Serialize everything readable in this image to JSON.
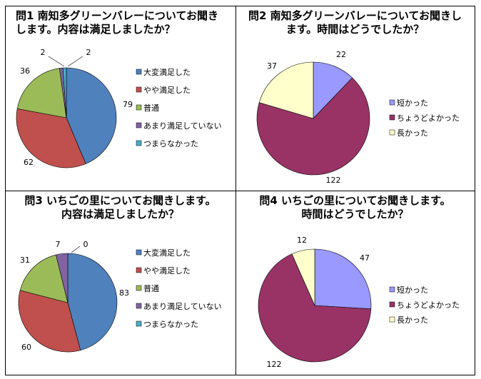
{
  "chart_data": [
    {
      "type": "pie",
      "title": "問1  南知多グリーンバレーについてお聞き\nします。内容は満足しましたか？",
      "categories": [
        "大変満足した",
        "やや満足した",
        "普通",
        "あまり満足していない",
        "つまらなかった"
      ],
      "values": [
        79,
        62,
        36,
        2,
        2
      ],
      "colors": [
        "#4f81bd",
        "#c0504d",
        "#9bbb59",
        "#8064a2",
        "#4bacc6"
      ]
    },
    {
      "type": "pie",
      "title": "問2  南知多グリーンバレーについてお聞きし\nます。時間はどうでしたか？",
      "categories": [
        "短かった",
        "ちょうどよかった",
        "長かった"
      ],
      "values": [
        22,
        122,
        37
      ],
      "colors": [
        "#9999ff",
        "#993366",
        "#ffffcc"
      ]
    },
    {
      "type": "pie",
      "title": "問3  いちごの里についてお聞きします。\n内容は満足しましたか？",
      "categories": [
        "大変満足した",
        "やや満足した",
        "普通",
        "あまり満足していない",
        "つまらなかった"
      ],
      "values": [
        83,
        60,
        31,
        7,
        0
      ],
      "colors": [
        "#4f81bd",
        "#c0504d",
        "#9bbb59",
        "#8064a2",
        "#4bacc6"
      ]
    },
    {
      "type": "pie",
      "title": "問4  いちごの里についてお聞きします。\n時間はどうでしたか？",
      "categories": [
        "短かった",
        "ちょうどよかった",
        "長かった"
      ],
      "values": [
        47,
        122,
        12
      ],
      "colors": [
        "#9999ff",
        "#993366",
        "#ffffcc"
      ]
    }
  ]
}
